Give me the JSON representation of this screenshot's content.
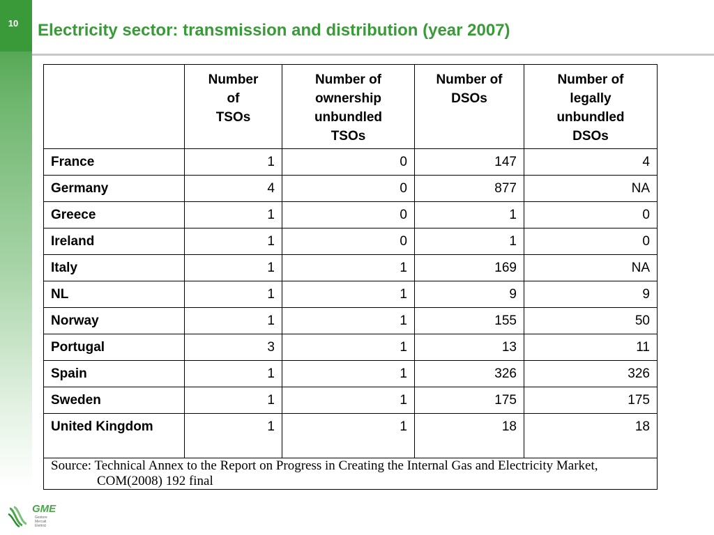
{
  "slide": {
    "number": "10",
    "title": "Electricity sector: transmission and distribution (year 2007)"
  },
  "table": {
    "headers": [
      "",
      "Number of TSOs",
      "Number of ownership unbundled TSOs",
      "Number of DSOs",
      "Number of legally unbundled DSOs"
    ],
    "header_lines": [
      [],
      [
        "Number",
        "of",
        "TSOs"
      ],
      [
        "Number of",
        "ownership",
        "unbundled",
        "TSOs"
      ],
      [
        "Number of",
        "DSOs"
      ],
      [
        "Number of",
        "legally",
        "unbundled",
        "DSOs"
      ]
    ],
    "rows": [
      {
        "country": "France",
        "tsos": "1",
        "unbundled_tsos": "0",
        "dsos": "147",
        "unbundled_dsos": "4"
      },
      {
        "country": "Germany",
        "tsos": "4",
        "unbundled_tsos": "0",
        "dsos": "877",
        "unbundled_dsos": "NA"
      },
      {
        "country": "Greece",
        "tsos": "1",
        "unbundled_tsos": "0",
        "dsos": "1",
        "unbundled_dsos": "0"
      },
      {
        "country": "Ireland",
        "tsos": "1",
        "unbundled_tsos": "0",
        "dsos": "1",
        "unbundled_dsos": "0"
      },
      {
        "country": "Italy",
        "tsos": "1",
        "unbundled_tsos": "1",
        "dsos": "169",
        "unbundled_dsos": "NA"
      },
      {
        "country": "NL",
        "tsos": "1",
        "unbundled_tsos": "1",
        "dsos": "9",
        "unbundled_dsos": "9"
      },
      {
        "country": "Norway",
        "tsos": "1",
        "unbundled_tsos": "1",
        "dsos": "155",
        "unbundled_dsos": "50"
      },
      {
        "country": "Portugal",
        "tsos": "3",
        "unbundled_tsos": "1",
        "dsos": "13",
        "unbundled_dsos": "11"
      },
      {
        "country": "Spain",
        "tsos": "1",
        "unbundled_tsos": "1",
        "dsos": "326",
        "unbundled_dsos": "326"
      },
      {
        "country": "Sweden",
        "tsos": "1",
        "unbundled_tsos": "1",
        "dsos": "175",
        "unbundled_dsos": "175"
      },
      {
        "country": "United Kingdom",
        "tsos": "1",
        "unbundled_tsos": "1",
        "dsos": "18",
        "unbundled_dsos": "18"
      }
    ],
    "source_line1": "Source: Technical Annex to the Report on Progress in Creating the Internal Gas and  Electricity Market,",
    "source_line2": "COM(2008) 192 final"
  },
  "logo": {
    "name": "GME",
    "sub_lines": [
      "Gestore",
      "Mercati",
      "Elettrici"
    ]
  },
  "colors": {
    "accent_green": "#3a9a3a",
    "rule_gray": "#c8c8c8"
  }
}
